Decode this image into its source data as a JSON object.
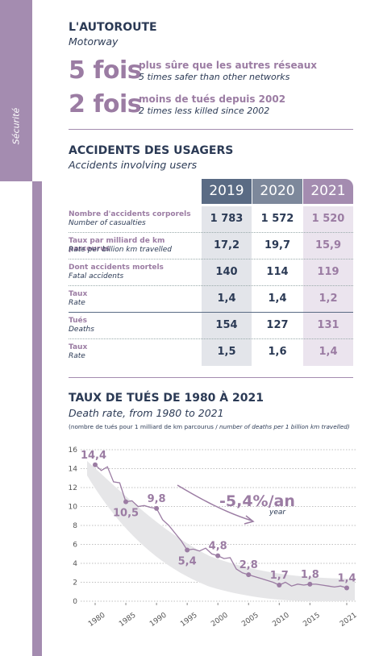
{
  "sidebar": {
    "label": "Sécurité"
  },
  "header": {
    "title": "L'AUTOROUTE",
    "subtitle": "Motorway"
  },
  "stats": [
    {
      "big": "5 fois",
      "fr": "plus sûre que les autres réseaux",
      "en": "5 times safer than other networks"
    },
    {
      "big": "2 fois",
      "fr": "moins de tués depuis 2002",
      "en": "2 times less killed since 2002"
    }
  ],
  "accidents": {
    "title": "ACCIDENTS DES USAGERS",
    "subtitle": "Accidents involving users",
    "table": {
      "columns": [
        "2019",
        "2020",
        "2021"
      ],
      "rows": [
        {
          "fr": "Nombre d'accidents corporels",
          "en": "Number of casualties",
          "cells": [
            "1 783",
            "1 572",
            "1 520"
          ]
        },
        {
          "fr": "Taux par milliard de km parcourus",
          "en": "Rate per billion km travelled",
          "cells": [
            "17,2",
            "19,7",
            "15,9"
          ]
        },
        {
          "fr": "Dont accidents mortels",
          "en": "Fatal accidents",
          "cells": [
            "140",
            "114",
            "119"
          ]
        },
        {
          "fr": "Taux",
          "en": "Rate",
          "cells": [
            "1,4",
            "1,4",
            "1,2"
          ]
        },
        {
          "fr": "Tués",
          "en": "Deaths",
          "cells": [
            "154",
            "127",
            "131"
          ]
        },
        {
          "fr": "Taux",
          "en": "Rate",
          "cells": [
            "1,5",
            "1,6",
            "1,4"
          ]
        }
      ]
    }
  },
  "chart_data": {
    "type": "line",
    "title": "TAUX DE TUÉS DE 1980 À 2021",
    "subtitle": "Death rate, from 1980 to 2021",
    "note_fr": "(nombre de tués pour 1 milliard de km parcourus / ",
    "note_en": "number of deaths per 1 billion km travelled)",
    "annotation": "-5,4%/an",
    "annotation_sub": "year",
    "x": [
      1980,
      1981,
      1982,
      1983,
      1984,
      1985,
      1986,
      1987,
      1988,
      1989,
      1990,
      1991,
      1992,
      1993,
      1994,
      1995,
      1996,
      1997,
      1998,
      1999,
      2000,
      2001,
      2002,
      2003,
      2004,
      2005,
      2006,
      2007,
      2008,
      2009,
      2010,
      2011,
      2012,
      2013,
      2014,
      2015,
      2016,
      2017,
      2018,
      2019,
      2020,
      2021
    ],
    "values": [
      14.4,
      13.8,
      14.2,
      12.6,
      12.5,
      10.5,
      10.6,
      10.0,
      10.1,
      9.9,
      9.8,
      8.6,
      8.0,
      7.2,
      6.4,
      5.4,
      5.5,
      5.3,
      5.6,
      5.0,
      4.8,
      4.5,
      4.6,
      3.4,
      3.0,
      2.8,
      2.6,
      2.4,
      2.2,
      2.0,
      1.7,
      2.0,
      1.6,
      1.8,
      1.7,
      1.8,
      1.8,
      1.7,
      1.6,
      1.5,
      1.6,
      1.4
    ],
    "value_labels": [
      "14,4",
      null,
      null,
      null,
      null,
      "10,5",
      null,
      null,
      null,
      null,
      "9,8",
      null,
      null,
      null,
      null,
      "5,4",
      null,
      null,
      null,
      null,
      "4,8",
      null,
      null,
      null,
      null,
      "2,8",
      null,
      null,
      null,
      null,
      "1,7",
      null,
      null,
      null,
      null,
      "1,8",
      null,
      null,
      null,
      null,
      null,
      "1,4"
    ],
    "color": "#9b7ca3",
    "xlim": [
      1980,
      2021
    ],
    "xticks": [
      1980,
      1985,
      1990,
      1995,
      2000,
      2005,
      2010,
      2015,
      2021
    ],
    "ylim": [
      0,
      16
    ],
    "yticks": [
      0,
      2,
      4,
      6,
      8,
      10,
      12,
      14,
      16
    ],
    "grid": true
  }
}
